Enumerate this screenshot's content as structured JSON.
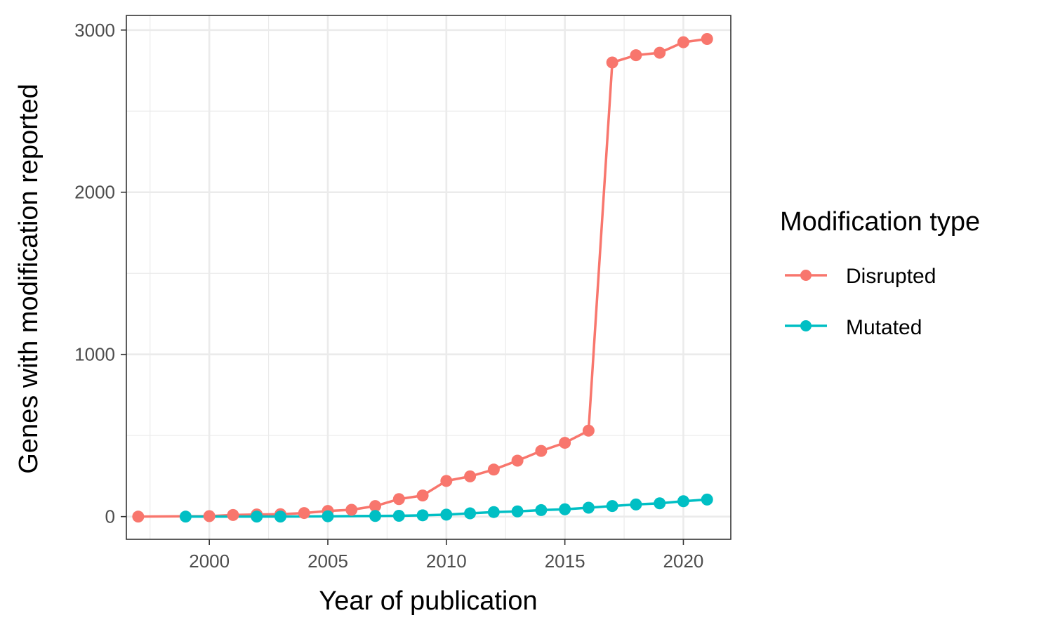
{
  "chart_data": {
    "type": "line",
    "xlabel": "Year of publication",
    "ylabel": "Genes with modification reported",
    "xlim": [
      1996.5,
      2022
    ],
    "ylim": [
      -140,
      3090
    ],
    "x_ticks": [
      2000,
      2005,
      2010,
      2015,
      2020
    ],
    "x_tick_labels": [
      "2000",
      "2005",
      "2010",
      "2015",
      "2020"
    ],
    "y_ticks": [
      0,
      1000,
      2000,
      3000
    ],
    "y_tick_labels": [
      "0",
      "1000",
      "2000",
      "3000"
    ],
    "grid": true,
    "legend": {
      "title": "Modification type",
      "position": "right"
    },
    "series": [
      {
        "name": "Disrupted",
        "color": "#F8766D",
        "x": [
          1997,
          2000,
          2001,
          2002,
          2003,
          2004,
          2005,
          2006,
          2007,
          2008,
          2009,
          2010,
          2011,
          2012,
          2013,
          2014,
          2015,
          2016,
          2017,
          2018,
          2019,
          2020,
          2021
        ],
        "y": [
          0,
          3,
          10,
          13,
          15,
          22,
          35,
          42,
          65,
          108,
          130,
          220,
          248,
          290,
          345,
          405,
          455,
          530,
          2800,
          2845,
          2860,
          2925,
          2945
        ]
      },
      {
        "name": "Mutated",
        "color": "#00BFC4",
        "x": [
          1999,
          2002,
          2003,
          2005,
          2007,
          2008,
          2009,
          2010,
          2011,
          2012,
          2013,
          2014,
          2015,
          2016,
          2017,
          2018,
          2019,
          2020,
          2021
        ],
        "y": [
          0,
          0,
          0,
          2,
          4,
          5,
          8,
          12,
          20,
          28,
          32,
          40,
          45,
          55,
          65,
          75,
          82,
          95,
          105
        ]
      }
    ]
  }
}
